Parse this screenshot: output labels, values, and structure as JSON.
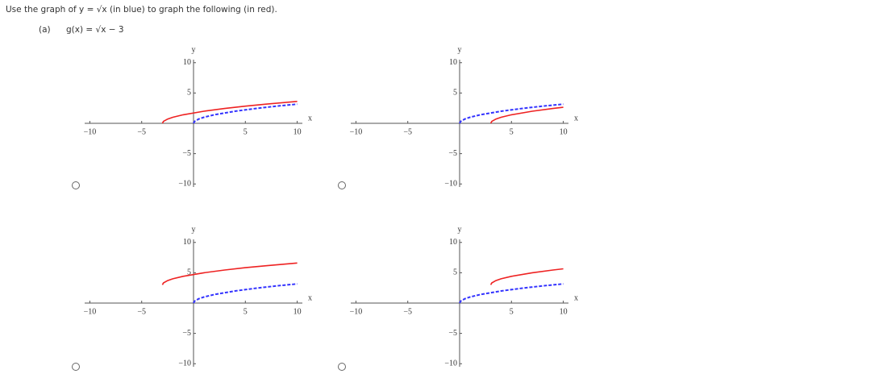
{
  "prompt": "Use the graph of y = √x (in blue) to graph the following (in red).",
  "part": "(a)",
  "function": "g(x) = √x − 3",
  "chart_data": [
    {
      "type": "line",
      "xlabel": "x",
      "ylabel": "y",
      "xlim": [
        -10.5,
        10.5
      ],
      "ylim": [
        -10.5,
        10.5
      ],
      "xticks": [
        {
          "value": -10,
          "label": "−10"
        },
        {
          "value": -5,
          "label": "−5"
        },
        5,
        10
      ],
      "yticks": [
        10,
        5,
        {
          "value": -5,
          "label": "−5"
        },
        {
          "value": -10,
          "label": "−10"
        }
      ],
      "series": [
        {
          "color": "#3333ff",
          "dashed": true,
          "x": [
            0,
            0.1,
            0.5,
            1,
            2,
            4,
            6,
            8,
            10
          ],
          "values": [
            0,
            0.32,
            0.71,
            1,
            1.41,
            2,
            2.45,
            2.83,
            3.16
          ]
        },
        {
          "color": "#ee2222",
          "x": [
            -3,
            -2.9,
            -2.5,
            -2,
            -1,
            1,
            3,
            5,
            7,
            10
          ],
          "values": [
            0,
            0.32,
            0.71,
            1,
            1.41,
            2,
            2.45,
            2.83,
            3.16,
            3.61
          ]
        }
      ]
    },
    {
      "type": "line",
      "xlabel": "x",
      "ylabel": "y",
      "xlim": [
        -10.5,
        10.5
      ],
      "ylim": [
        -10.5,
        10.5
      ],
      "xticks": [
        {
          "value": -10,
          "label": "−10"
        },
        {
          "value": -5,
          "label": "−5"
        },
        5,
        10
      ],
      "yticks": [
        10,
        5,
        {
          "value": -5,
          "label": "−5"
        },
        {
          "value": -10,
          "label": "−10"
        }
      ],
      "series": [
        {
          "color": "#3333ff",
          "dashed": true,
          "x": [
            0,
            0.1,
            0.5,
            1,
            2,
            4,
            6,
            8,
            10
          ],
          "values": [
            0,
            0.32,
            0.71,
            1,
            1.41,
            2,
            2.45,
            2.83,
            3.16
          ]
        },
        {
          "color": "#ee2222",
          "x": [
            3,
            3.1,
            3.5,
            4,
            5,
            7,
            9,
            10
          ],
          "values": [
            0,
            0.32,
            0.71,
            1,
            1.41,
            2,
            2.45,
            2.65
          ]
        }
      ]
    },
    {
      "type": "line",
      "xlabel": "x",
      "ylabel": "y",
      "xlim": [
        -10.5,
        10.5
      ],
      "ylim": [
        -10.5,
        10.5
      ],
      "xticks": [
        {
          "value": -10,
          "label": "−10"
        },
        {
          "value": -5,
          "label": "−5"
        },
        5,
        10
      ],
      "yticks": [
        10,
        5,
        {
          "value": -5,
          "label": "−5"
        },
        {
          "value": -10,
          "label": "−10"
        }
      ],
      "series": [
        {
          "color": "#3333ff",
          "dashed": true,
          "x": [
            0,
            0.1,
            0.5,
            1,
            2,
            4,
            6,
            8,
            10
          ],
          "values": [
            0,
            0.32,
            0.71,
            1,
            1.41,
            2,
            2.45,
            2.83,
            3.16
          ]
        },
        {
          "color": "#ee2222",
          "x": [
            -3,
            -2.9,
            -2.5,
            -2,
            -1,
            1,
            3,
            5,
            7,
            10
          ],
          "values": [
            3,
            3.32,
            3.71,
            4,
            4.41,
            5,
            5.45,
            5.83,
            6.16,
            6.61
          ]
        }
      ]
    },
    {
      "type": "line",
      "xlabel": "x",
      "ylabel": "y",
      "xlim": [
        -10.5,
        10.5
      ],
      "ylim": [
        -10.5,
        10.5
      ],
      "xticks": [
        {
          "value": -10,
          "label": "−10"
        },
        {
          "value": -5,
          "label": "−5"
        },
        5,
        10
      ],
      "yticks": [
        10,
        5,
        {
          "value": -5,
          "label": "−5"
        },
        {
          "value": -10,
          "label": "−10"
        }
      ],
      "series": [
        {
          "color": "#3333ff",
          "dashed": true,
          "x": [
            0,
            0.1,
            0.5,
            1,
            2,
            4,
            6,
            8,
            10
          ],
          "values": [
            0,
            0.32,
            0.71,
            1,
            1.41,
            2,
            2.45,
            2.83,
            3.16
          ]
        },
        {
          "color": "#ee2222",
          "x": [
            3,
            3.1,
            3.5,
            4,
            5,
            7,
            9,
            10
          ],
          "values": [
            3,
            3.32,
            3.71,
            4,
            4.41,
            5,
            5.45,
            5.65
          ]
        }
      ]
    }
  ]
}
